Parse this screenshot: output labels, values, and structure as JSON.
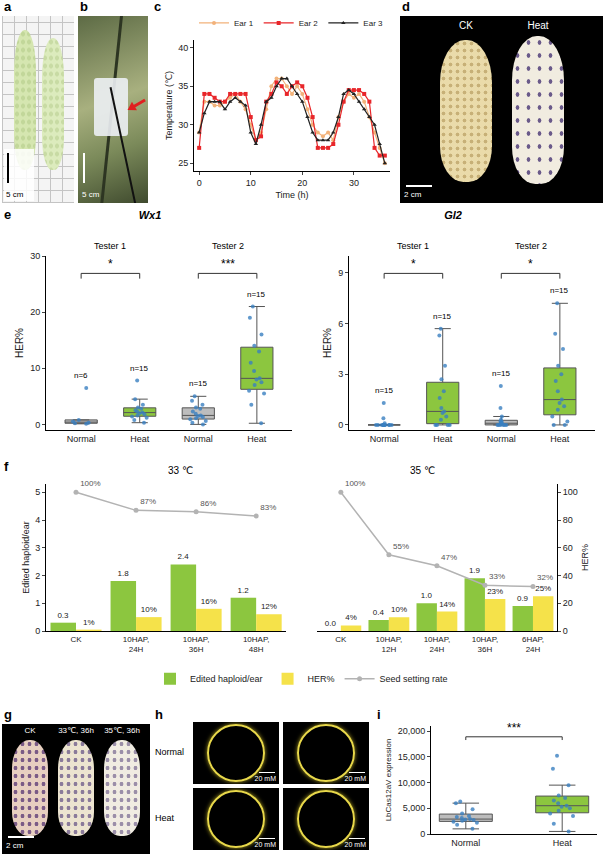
{
  "chart_data": [
    {
      "panel": "c",
      "type": "line",
      "x": [
        0,
        1,
        2,
        3,
        4,
        5,
        6,
        7,
        8,
        9,
        10,
        11,
        12,
        13,
        14,
        15,
        16,
        17,
        18,
        19,
        20,
        21,
        22,
        23,
        24,
        25,
        26,
        27,
        28,
        29,
        30,
        31,
        32,
        33,
        34,
        35,
        36
      ],
      "series": [
        {
          "name": "Ear 1",
          "color": "#f2b27a",
          "marker": "circle",
          "values": [
            29,
            33,
            33,
            32.5,
            32.5,
            33,
            33.5,
            34,
            33,
            32,
            30,
            28,
            29,
            32,
            35,
            36,
            36,
            35,
            34,
            35,
            34,
            32,
            30,
            29,
            28.5,
            29,
            28,
            31,
            33,
            34,
            33.5,
            34,
            33,
            31,
            29,
            27,
            25
          ]
        },
        {
          "name": "Ear 2",
          "color": "#e8262a",
          "marker": "square",
          "values": [
            27,
            34,
            34,
            33.5,
            33,
            33,
            34,
            34,
            34,
            34,
            31,
            28,
            28.5,
            33,
            34,
            35.5,
            35,
            34,
            35,
            35.5,
            35,
            33.5,
            31,
            27,
            27,
            27,
            27.5,
            30,
            33,
            34.5,
            34.5,
            34.5,
            34,
            33,
            27,
            26,
            26
          ]
        },
        {
          "name": "Ear 3",
          "color": "#222222",
          "marker": "triangle-up",
          "values": [
            29,
            31.5,
            33,
            33,
            33,
            32,
            33,
            33.5,
            33,
            32.5,
            29,
            27.5,
            30,
            33,
            33.5,
            35,
            36,
            36,
            35,
            34,
            33,
            31,
            29,
            28,
            28,
            28,
            29,
            31,
            34,
            34.5,
            34,
            33,
            32,
            31,
            30,
            27.5,
            25
          ]
        }
      ],
      "x_label": "Time (h)",
      "y_label": "Temperature (℃)",
      "xlim": [
        -1,
        37
      ],
      "xticks": [
        0,
        10,
        20,
        30
      ],
      "ylim": [
        24,
        41
      ],
      "yticks": [
        25,
        30,
        35,
        40
      ],
      "grid": false,
      "legend": "top"
    },
    {
      "panel": "e",
      "type": "box",
      "grid": false,
      "panels": [
        {
          "title": "Wx1",
          "y_label": "HER%",
          "ylim": [
            -1,
            30
          ],
          "yticks": [
            0,
            10,
            20,
            30
          ],
          "groups": [
            {
              "name": "Tester 1",
              "significance": "*"
            },
            {
              "name": "Tester 2",
              "significance": "***"
            }
          ],
          "boxes": [
            {
              "group": "Tester 1",
              "category": "Normal",
              "n_label": "n=6",
              "color": "#bdbdbd",
              "values": [
                0.1,
                0.2,
                0.3,
                0.5,
                0.8,
                6.5
              ]
            },
            {
              "group": "Tester 1",
              "category": "Heat",
              "n_label": "n=15",
              "color": "#8cc63f",
              "values": [
                0.3,
                0.8,
                1.2,
                1.4,
                1.6,
                1.8,
                2.0,
                2.1,
                2.3,
                2.5,
                2.8,
                3.0,
                3.5,
                4.5,
                7.8
              ]
            },
            {
              "group": "Tester 2",
              "category": "Normal",
              "n_label": "n=15",
              "color": "#bdbdbd",
              "values": [
                0,
                0.3,
                0.6,
                0.9,
                1.1,
                1.3,
                1.5,
                1.6,
                1.9,
                2.3,
                2.8,
                3.0,
                3.5,
                4.2,
                5.0
              ]
            },
            {
              "group": "Tester 2",
              "category": "Heat",
              "n_label": "n=15",
              "color": "#8cc63f",
              "values": [
                0.2,
                3.5,
                5.5,
                6,
                7,
                7.5,
                8,
                8.2,
                9.5,
                11,
                13,
                14,
                16,
                19,
                21
              ]
            }
          ]
        },
        {
          "title": "Gl2",
          "y_label": "HER%",
          "ylim": [
            -0.3,
            10
          ],
          "yticks": [
            0,
            3,
            6,
            9
          ],
          "groups": [
            {
              "name": "Tester 1",
              "significance": "*"
            },
            {
              "name": "Tester 2",
              "significance": "*"
            }
          ],
          "boxes": [
            {
              "group": "Tester 1",
              "category": "Normal",
              "n_label": "n=15",
              "color": "#bdbdbd",
              "values": [
                0,
                0,
                0,
                0,
                0,
                0,
                0,
                0,
                0,
                0,
                0,
                0,
                0.1,
                0.4,
                1.3
              ]
            },
            {
              "group": "Tester 1",
              "category": "Heat",
              "n_label": "n=15",
              "color": "#8cc63f",
              "values": [
                0,
                0,
                0,
                0,
                0.3,
                0.5,
                0.7,
                0.8,
                1.0,
                1.6,
                2.0,
                2.7,
                3.5,
                5.3,
                5.7
              ]
            },
            {
              "group": "Tester 2",
              "category": "Normal",
              "n_label": "n=15",
              "color": "#bdbdbd",
              "values": [
                0,
                0,
                0,
                0,
                0,
                0,
                0.1,
                0.1,
                0.1,
                0.2,
                0.2,
                0.3,
                0.5,
                1.0,
                2.3
              ]
            },
            {
              "group": "Tester 2",
              "category": "Heat",
              "n_label": "n=15",
              "color": "#8cc63f",
              "values": [
                0,
                0,
                0.2,
                0.5,
                0.9,
                1.1,
                1.3,
                1.5,
                2.0,
                2.6,
                3.0,
                3.5,
                4.5,
                5.4,
                7.2
              ]
            }
          ]
        }
      ]
    },
    {
      "panel": "f",
      "type": "bar",
      "data_labels": true,
      "legend": "bottom",
      "grid": false,
      "y_label": "Edited haploid/ear",
      "y2_label": "HER%",
      "ylim": [
        0,
        5.3
      ],
      "yticks": [
        0,
        1,
        2,
        3,
        4,
        5
      ],
      "y2lim": [
        0,
        106
      ],
      "y2ticks": [
        0,
        20,
        40,
        60,
        80,
        100
      ],
      "panels": [
        {
          "title": "33 ℃",
          "categories": [
            "CK",
            "10HAP, 24H",
            "10HAP, 36H",
            "10HAP, 48H"
          ],
          "series": [
            {
              "name": "Edited haploid/ear",
              "type": "bar",
              "color": "#8cc63f",
              "values": [
                0.3,
                1.8,
                2.4,
                1.2
              ],
              "value_labels": [
                "0.3",
                "1.8",
                "2.4",
                "1.2"
              ]
            },
            {
              "name": "HER%",
              "type": "bar",
              "axis": "y2",
              "color": "#f5e24a",
              "values": [
                1,
                10,
                16,
                12
              ],
              "value_labels": [
                "1%",
                "10%",
                "16%",
                "12%"
              ]
            },
            {
              "name": "Seed setting rate",
              "type": "line",
              "axis": "y2",
              "color": "#b3b3b3",
              "marker": "circle",
              "values": [
                100,
                87,
                86,
                83
              ],
              "value_labels": [
                "100%",
                "87%",
                "86%",
                "83%"
              ]
            }
          ]
        },
        {
          "title": "35 ℃",
          "categories": [
            "CK",
            "10HAP, 12H",
            "10HAP, 24H",
            "10HAP, 36H",
            "6HAP, 24H"
          ],
          "series": [
            {
              "name": "Edited haploid/ear",
              "type": "bar",
              "color": "#8cc63f",
              "values": [
                0.0,
                0.4,
                1.0,
                1.9,
                0.9
              ],
              "value_labels": [
                "0.0",
                "0.4",
                "1.0",
                "1.9",
                "0.9"
              ]
            },
            {
              "name": "HER%",
              "type": "bar",
              "axis": "y2",
              "color": "#f5e24a",
              "values": [
                4,
                10,
                14,
                23,
                25
              ],
              "value_labels": [
                "4%",
                "10%",
                "14%",
                "23%",
                "25%"
              ]
            },
            {
              "name": "Seed setting rate",
              "type": "line",
              "axis": "y2",
              "color": "#b3b3b3",
              "marker": "circle",
              "values": [
                100,
                55,
                47,
                33,
                32
              ],
              "value_labels": [
                "100%",
                "55%",
                "47%",
                "33%",
                "32%"
              ]
            }
          ]
        }
      ]
    },
    {
      "panel": "i",
      "type": "box",
      "grid": false,
      "y_label": "LbCas12aV expression",
      "ylim": [
        0,
        21000
      ],
      "yticks": [
        0,
        {
          "value": 5000,
          "label": "5,000"
        },
        {
          "value": 10000,
          "label": "10,000"
        },
        {
          "value": 15000,
          "label": "15,000"
        },
        {
          "value": 20000,
          "label": "20,000"
        }
      ],
      "significance": "***",
      "boxes": [
        {
          "category": "Normal",
          "color": "#bdbdbd",
          "values": [
            1000,
            1800,
            2200,
            2400,
            2600,
            2700,
            2800,
            2900,
            3100,
            3300,
            3500,
            4000,
            4800,
            6000,
            6300
          ]
        },
        {
          "category": "Heat",
          "color": "#8cc63f",
          "values": [
            500,
            2000,
            3500,
            4000,
            4500,
            5000,
            5300,
            5500,
            6000,
            6500,
            7000,
            7500,
            9500,
            12700,
            15200
          ]
        }
      ]
    }
  ],
  "images": {
    "a": {
      "scale": "5 cm"
    },
    "b": {
      "scale": "5 cm"
    },
    "d": {
      "labels": [
        "CK",
        "Heat"
      ],
      "scale": "2 cm"
    },
    "g": {
      "labels": [
        "CK",
        "33℃, 36h",
        "35℃, 36h"
      ],
      "scale": "2 cm"
    },
    "h": {
      "rows": [
        "Normal",
        "Heat"
      ],
      "scale": "20 mM"
    }
  }
}
